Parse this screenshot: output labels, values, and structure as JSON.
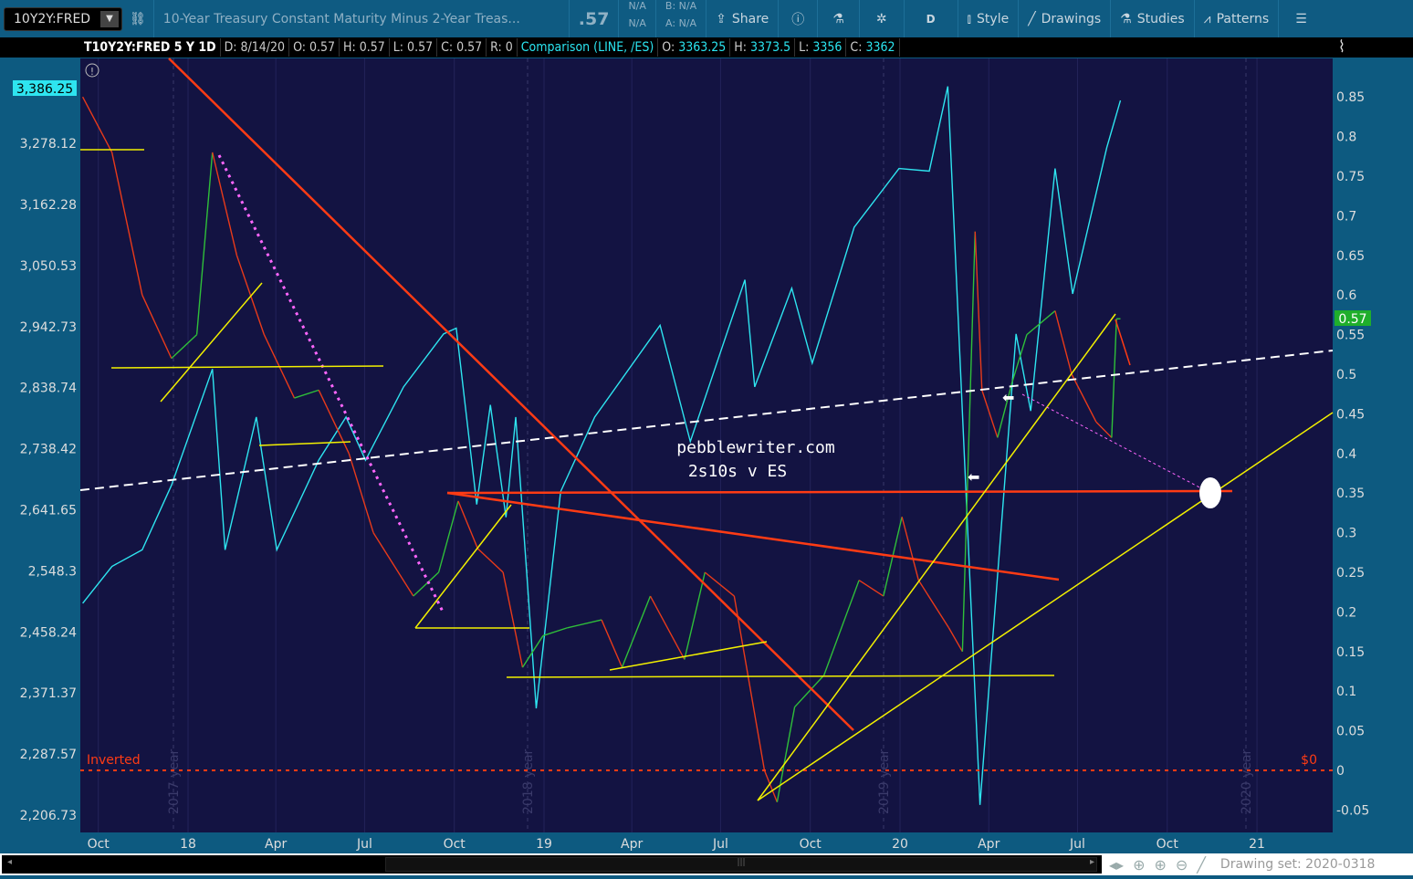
{
  "toolbar": {
    "symbol": "10Y2Y:FRED",
    "description": "10-Year Treasury Constant Maturity Minus 2-Year Treas...",
    "last": ".57",
    "na1": "N/A",
    "na2": "N/A",
    "bid": "B: N/A",
    "ask": "A: N/A",
    "share": "Share",
    "aggregation": "D",
    "style": "Style",
    "drawings": "Drawings",
    "studies": "Studies",
    "patterns": "Patterns"
  },
  "info": {
    "title": "T10Y2Y:FRED 5 Y 1D",
    "date": "D: 8/14/20",
    "open": "O: 0.57",
    "high": "H: 0.57",
    "low": "L: 0.57",
    "close": "C: 0.57",
    "range": "R: 0",
    "comparison": "Comparison (LINE, /ES)",
    "c_open_l": "O:",
    "c_open": "3363.25",
    "c_high_l": "H:",
    "c_high": "3373.5",
    "c_low_l": "L:",
    "c_low": "3356",
    "c_close_l": "C:",
    "c_close": "3362"
  },
  "annotations": {
    "site": "pebblewriter.com",
    "subtitle": "2s10s v ES",
    "inverted": "Inverted",
    "zero": "$0"
  },
  "bottom": {
    "drawing_set": "Drawing set: 2020-0318"
  },
  "colors": {
    "background": "#131342",
    "es": "#2ee5f0",
    "spread_up": "#2fbf3a",
    "spread_down": "#e83a1a",
    "trend_red": "#ff3b14",
    "trend_yellow": "#f2f000",
    "dashed_white": "#ffffff",
    "magenta": "#ff66ff",
    "accent_toolbar": "#0f5b82"
  },
  "chart_data": [
    {
      "type": "line",
      "name": "Comparison (LINE, /ES)",
      "axis": "left",
      "scale": "log",
      "ylim": [
        2206.73,
        3386.25
      ],
      "left_ticks": [
        "3,278.12",
        "3,162.28",
        "3,050.53",
        "2,942.73",
        "2,838.74",
        "2,738.42",
        "2,641.65",
        "2,548.3",
        "2,458.24",
        "2,371.37",
        "2,287.57",
        "2,206.73"
      ],
      "last_label": "3,386.25",
      "x": [
        "2017-09-15",
        "2017-10-15",
        "2017-11-15",
        "2017-12-15",
        "2018-01-26",
        "2018-02-08",
        "2018-03-12",
        "2018-04-02",
        "2018-05-15",
        "2018-06-12",
        "2018-07-02",
        "2018-08-10",
        "2018-09-20",
        "2018-10-03",
        "2018-10-24",
        "2018-11-07",
        "2018-11-23",
        "2018-12-03",
        "2018-12-24",
        "2019-01-18",
        "2019-02-22",
        "2019-04-30",
        "2019-05-31",
        "2019-07-26",
        "2019-08-05",
        "2019-09-12",
        "2019-10-03",
        "2019-11-15",
        "2019-12-31",
        "2020-01-31",
        "2020-02-19",
        "2020-03-23",
        "2020-04-29",
        "2020-05-14",
        "2020-06-08",
        "2020-06-26",
        "2020-07-31",
        "2020-08-14"
      ],
      "values": [
        2500,
        2555,
        2580,
        2680,
        2870,
        2580,
        2790,
        2580,
        2720,
        2790,
        2720,
        2840,
        2930,
        2940,
        2650,
        2810,
        2630,
        2790,
        2350,
        2670,
        2790,
        2945,
        2750,
        3025,
        2840,
        3010,
        2880,
        3120,
        3230,
        3225,
        3390,
        2220,
        2930,
        2800,
        3230,
        3000,
        3270,
        3362
      ]
    },
    {
      "type": "line",
      "name": "T10Y2Y:FRED",
      "axis": "right",
      "ylim": [
        -0.05,
        0.85
      ],
      "right_ticks": [
        "0.85",
        "0.8",
        "0.75",
        "0.7",
        "0.65",
        "0.6",
        "0.55",
        "0.5",
        "0.45",
        "0.4",
        "0.35",
        "0.3",
        "0.25",
        "0.2",
        "0.15",
        "0.1",
        "0.05",
        "0",
        "-0.05"
      ],
      "last_label": "0.57",
      "x": [
        "2017-09-15",
        "2017-10-15",
        "2017-11-15",
        "2017-12-15",
        "2018-01-10",
        "2018-01-26",
        "2018-02-20",
        "2018-03-20",
        "2018-04-20",
        "2018-05-15",
        "2018-06-15",
        "2018-07-10",
        "2018-08-20",
        "2018-09-15",
        "2018-10-05",
        "2018-10-25",
        "2018-11-20",
        "2018-12-10",
        "2018-12-31",
        "2019-01-25",
        "2019-03-01",
        "2019-03-22",
        "2019-04-20",
        "2019-05-25",
        "2019-06-15",
        "2019-07-15",
        "2019-08-15",
        "2019-08-28",
        "2019-09-15",
        "2019-10-15",
        "2019-11-20",
        "2019-12-15",
        "2020-01-03",
        "2020-01-20",
        "2020-02-20",
        "2020-03-05",
        "2020-03-18",
        "2020-03-25",
        "2020-04-10",
        "2020-04-25",
        "2020-05-10",
        "2020-06-08",
        "2020-06-25",
        "2020-07-20",
        "2020-08-05",
        "2020-08-10",
        "2020-08-14"
      ],
      "values": [
        0.85,
        0.78,
        0.6,
        0.52,
        0.55,
        0.78,
        0.65,
        0.55,
        0.47,
        0.48,
        0.4,
        0.3,
        0.22,
        0.25,
        0.34,
        0.28,
        0.25,
        0.13,
        0.17,
        0.18,
        0.19,
        0.13,
        0.22,
        0.14,
        0.25,
        0.22,
        0.0,
        -0.04,
        0.08,
        0.12,
        0.24,
        0.22,
        0.32,
        0.24,
        0.18,
        0.15,
        0.68,
        0.48,
        0.42,
        0.49,
        0.55,
        0.58,
        0.5,
        0.44,
        0.42,
        0.57,
        0.57
      ]
    },
    {
      "type": "axis",
      "x_ticks": [
        {
          "label": "Oct",
          "date": "2017-10-01"
        },
        {
          "label": "18",
          "date": "2018-01-01"
        },
        {
          "label": "Apr",
          "date": "2018-04-01"
        },
        {
          "label": "Jul",
          "date": "2018-07-01"
        },
        {
          "label": "Oct",
          "date": "2018-10-01"
        },
        {
          "label": "19",
          "date": "2019-01-01"
        },
        {
          "label": "Apr",
          "date": "2019-04-01"
        },
        {
          "label": "Jul",
          "date": "2019-07-01"
        },
        {
          "label": "Oct",
          "date": "2019-10-01"
        },
        {
          "label": "20",
          "date": "2020-01-01"
        },
        {
          "label": "Apr",
          "date": "2020-04-01"
        },
        {
          "label": "Jul",
          "date": "2020-07-01"
        },
        {
          "label": "Oct",
          "date": "2020-10-01"
        },
        {
          "label": "21",
          "date": "2021-01-01"
        }
      ],
      "year_watermarks": [
        "2017 year",
        "2018 year",
        "2019 year",
        "2020 year"
      ]
    }
  ]
}
